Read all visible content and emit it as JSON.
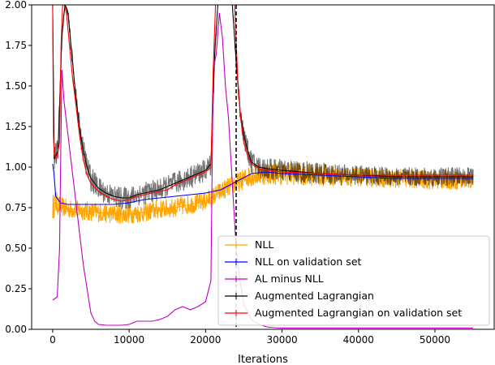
{
  "chart_data": {
    "type": "line",
    "xlabel": "Iterations",
    "ylabel": "",
    "title": "",
    "xlim": [
      -2750,
      57750
    ],
    "ylim": [
      0.0,
      2.0
    ],
    "xticks": [
      0,
      10000,
      20000,
      30000,
      40000,
      50000
    ],
    "xtick_labels": [
      "0",
      "10000",
      "20000",
      "30000",
      "40000",
      "50000"
    ],
    "yticks": [
      0.0,
      0.25,
      0.5,
      0.75,
      1.0,
      1.25,
      1.5,
      1.75,
      2.0
    ],
    "ytick_labels": [
      "0.00",
      "0.25",
      "0.50",
      "0.75",
      "1.00",
      "1.25",
      "1.50",
      "1.75",
      "2.00"
    ],
    "grid": false,
    "legend_position": "lower-right",
    "vline": {
      "x": 24000,
      "style": "dashed",
      "color": "#000000"
    },
    "series": [
      {
        "name": "NLL",
        "color": "#ffa500",
        "style": "noisy-band",
        "x": [
          0,
          300,
          1000,
          2000,
          3000,
          4000,
          6000,
          8000,
          10000,
          12000,
          14000,
          16000,
          18000,
          20000,
          22000,
          24000,
          26000,
          28000,
          30000,
          35000,
          40000,
          45000,
          50000,
          55000
        ],
        "y": [
          0.75,
          0.78,
          0.76,
          0.74,
          0.74,
          0.73,
          0.72,
          0.71,
          0.71,
          0.72,
          0.74,
          0.75,
          0.77,
          0.79,
          0.85,
          0.9,
          0.95,
          0.96,
          0.96,
          0.95,
          0.94,
          0.93,
          0.92,
          0.92
        ],
        "noise": [
          0.08,
          0.08,
          0.06,
          0.06,
          0.06,
          0.06,
          0.06,
          0.06,
          0.06,
          0.06,
          0.06,
          0.06,
          0.06,
          0.06,
          0.06,
          0.06,
          0.07,
          0.07,
          0.07,
          0.07,
          0.06,
          0.06,
          0.06,
          0.06
        ]
      },
      {
        "name": "Augmented Lagrangian",
        "color": "#000000",
        "style": "noisy-band",
        "x": [
          0,
          200,
          700,
          1200,
          1600,
          2000,
          2500,
          3000,
          3500,
          4000,
          4500,
          5000,
          6000,
          7000,
          8000,
          9000,
          10000,
          11000,
          12000,
          13000,
          14000,
          15000,
          16000,
          17000,
          18000,
          19000,
          20000,
          20700,
          21200,
          21600,
          22000,
          22500,
          23000,
          23500,
          24000,
          24500,
          25000,
          25500,
          26000,
          27000,
          28000,
          30000,
          35000,
          40000,
          45000,
          50000,
          55000
        ],
        "y": [
          2.0,
          1.05,
          1.1,
          1.8,
          2.0,
          1.95,
          1.7,
          1.45,
          1.25,
          1.1,
          1.0,
          0.93,
          0.87,
          0.84,
          0.82,
          0.81,
          0.81,
          0.83,
          0.84,
          0.85,
          0.86,
          0.88,
          0.9,
          0.92,
          0.94,
          0.96,
          0.98,
          1.02,
          1.7,
          2.0,
          2.0,
          2.0,
          2.0,
          2.0,
          1.65,
          1.35,
          1.2,
          1.1,
          1.03,
          1.0,
          0.99,
          0.98,
          0.96,
          0.95,
          0.94,
          0.94,
          0.94
        ],
        "noise": [
          0.0,
          0.08,
          0.08,
          0.05,
          0.0,
          0.04,
          0.05,
          0.06,
          0.07,
          0.08,
          0.08,
          0.08,
          0.07,
          0.07,
          0.07,
          0.07,
          0.07,
          0.07,
          0.07,
          0.07,
          0.07,
          0.07,
          0.07,
          0.07,
          0.07,
          0.07,
          0.07,
          0.07,
          0.06,
          0.0,
          0.0,
          0.0,
          0.0,
          0.0,
          0.06,
          0.07,
          0.07,
          0.07,
          0.07,
          0.07,
          0.07,
          0.07,
          0.07,
          0.06,
          0.06,
          0.06,
          0.06
        ]
      },
      {
        "name": "NLL on validation set",
        "color": "#0000ff",
        "style": "line",
        "x": [
          0,
          150,
          400,
          1000,
          2000,
          3000,
          4000,
          6000,
          8000,
          10000,
          12000,
          14000,
          16000,
          18000,
          20000,
          22000,
          24000,
          26000,
          28000,
          30000,
          35000,
          40000,
          45000,
          50000,
          55000
        ],
        "y": [
          1.02,
          0.97,
          0.82,
          0.78,
          0.77,
          0.77,
          0.77,
          0.77,
          0.77,
          0.78,
          0.8,
          0.81,
          0.82,
          0.83,
          0.84,
          0.86,
          0.91,
          0.96,
          0.97,
          0.96,
          0.95,
          0.94,
          0.93,
          0.93,
          0.93
        ]
      },
      {
        "name": "AL minus NLL",
        "color": "#c000c0",
        "style": "line",
        "x": [
          0,
          300,
          600,
          900,
          1200,
          1500,
          2000,
          2500,
          3000,
          3500,
          4000,
          4500,
          5000,
          5500,
          6000,
          7000,
          8000,
          9000,
          10000,
          11000,
          12000,
          13000,
          14000,
          15000,
          16000,
          17000,
          18000,
          19000,
          20000,
          20700,
          21000,
          21400,
          21800,
          22200,
          22600,
          23000,
          23500,
          24000,
          24500,
          25000,
          26000,
          27000,
          28000,
          29000,
          30000,
          35000,
          40000,
          45000,
          50000,
          55000
        ],
        "y": [
          0.18,
          0.19,
          0.2,
          0.5,
          1.6,
          1.4,
          1.2,
          1.0,
          0.8,
          0.6,
          0.4,
          0.25,
          0.1,
          0.05,
          0.03,
          0.025,
          0.025,
          0.025,
          0.03,
          0.05,
          0.05,
          0.05,
          0.06,
          0.08,
          0.12,
          0.14,
          0.12,
          0.14,
          0.17,
          0.3,
          1.6,
          1.7,
          1.95,
          1.8,
          1.5,
          1.3,
          0.9,
          0.5,
          0.3,
          0.15,
          0.06,
          0.03,
          0.015,
          0.01,
          0.008,
          0.008,
          0.008,
          0.008,
          0.008,
          0.008
        ]
      },
      {
        "name": "Augmented Lagrangian on validation set",
        "color": "#ff0000",
        "style": "line",
        "x": [
          0,
          100,
          200,
          500,
          900,
          1100,
          1300,
          1500,
          1800,
          2200,
          2600,
          3000,
          3500,
          4000,
          4500,
          5000,
          6000,
          7000,
          8000,
          9000,
          10000,
          11000,
          12000,
          13000,
          14000,
          15000,
          16000,
          17000,
          18000,
          19000,
          20000,
          20700,
          21000,
          21300,
          21700,
          22000,
          23000,
          23800,
          24200,
          24600,
          25000,
          25500,
          26000,
          27000,
          28000,
          30000,
          35000,
          40000,
          45000,
          50000,
          55000
        ],
        "y": [
          2.0,
          1.2,
          1.08,
          1.05,
          1.15,
          1.75,
          2.0,
          2.0,
          1.95,
          1.75,
          1.55,
          1.4,
          1.2,
          1.05,
          0.95,
          0.9,
          0.85,
          0.82,
          0.8,
          0.79,
          0.8,
          0.82,
          0.83,
          0.84,
          0.85,
          0.86,
          0.89,
          0.91,
          0.93,
          0.95,
          0.97,
          1.0,
          1.6,
          2.0,
          2.0,
          2.0,
          2.0,
          2.0,
          1.55,
          1.3,
          1.15,
          1.07,
          1.02,
          0.99,
          0.98,
          0.97,
          0.96,
          0.95,
          0.95,
          0.95,
          0.95
        ]
      }
    ],
    "legend": [
      {
        "label": "NLL",
        "color": "#ffa500"
      },
      {
        "label": "NLL on validation set",
        "color": "#0000ff"
      },
      {
        "label": "AL minus NLL",
        "color": "#c000c0"
      },
      {
        "label": "Augmented Lagrangian",
        "color": "#000000"
      },
      {
        "label": "Augmented Lagrangian on validation set",
        "color": "#ff0000"
      }
    ]
  }
}
